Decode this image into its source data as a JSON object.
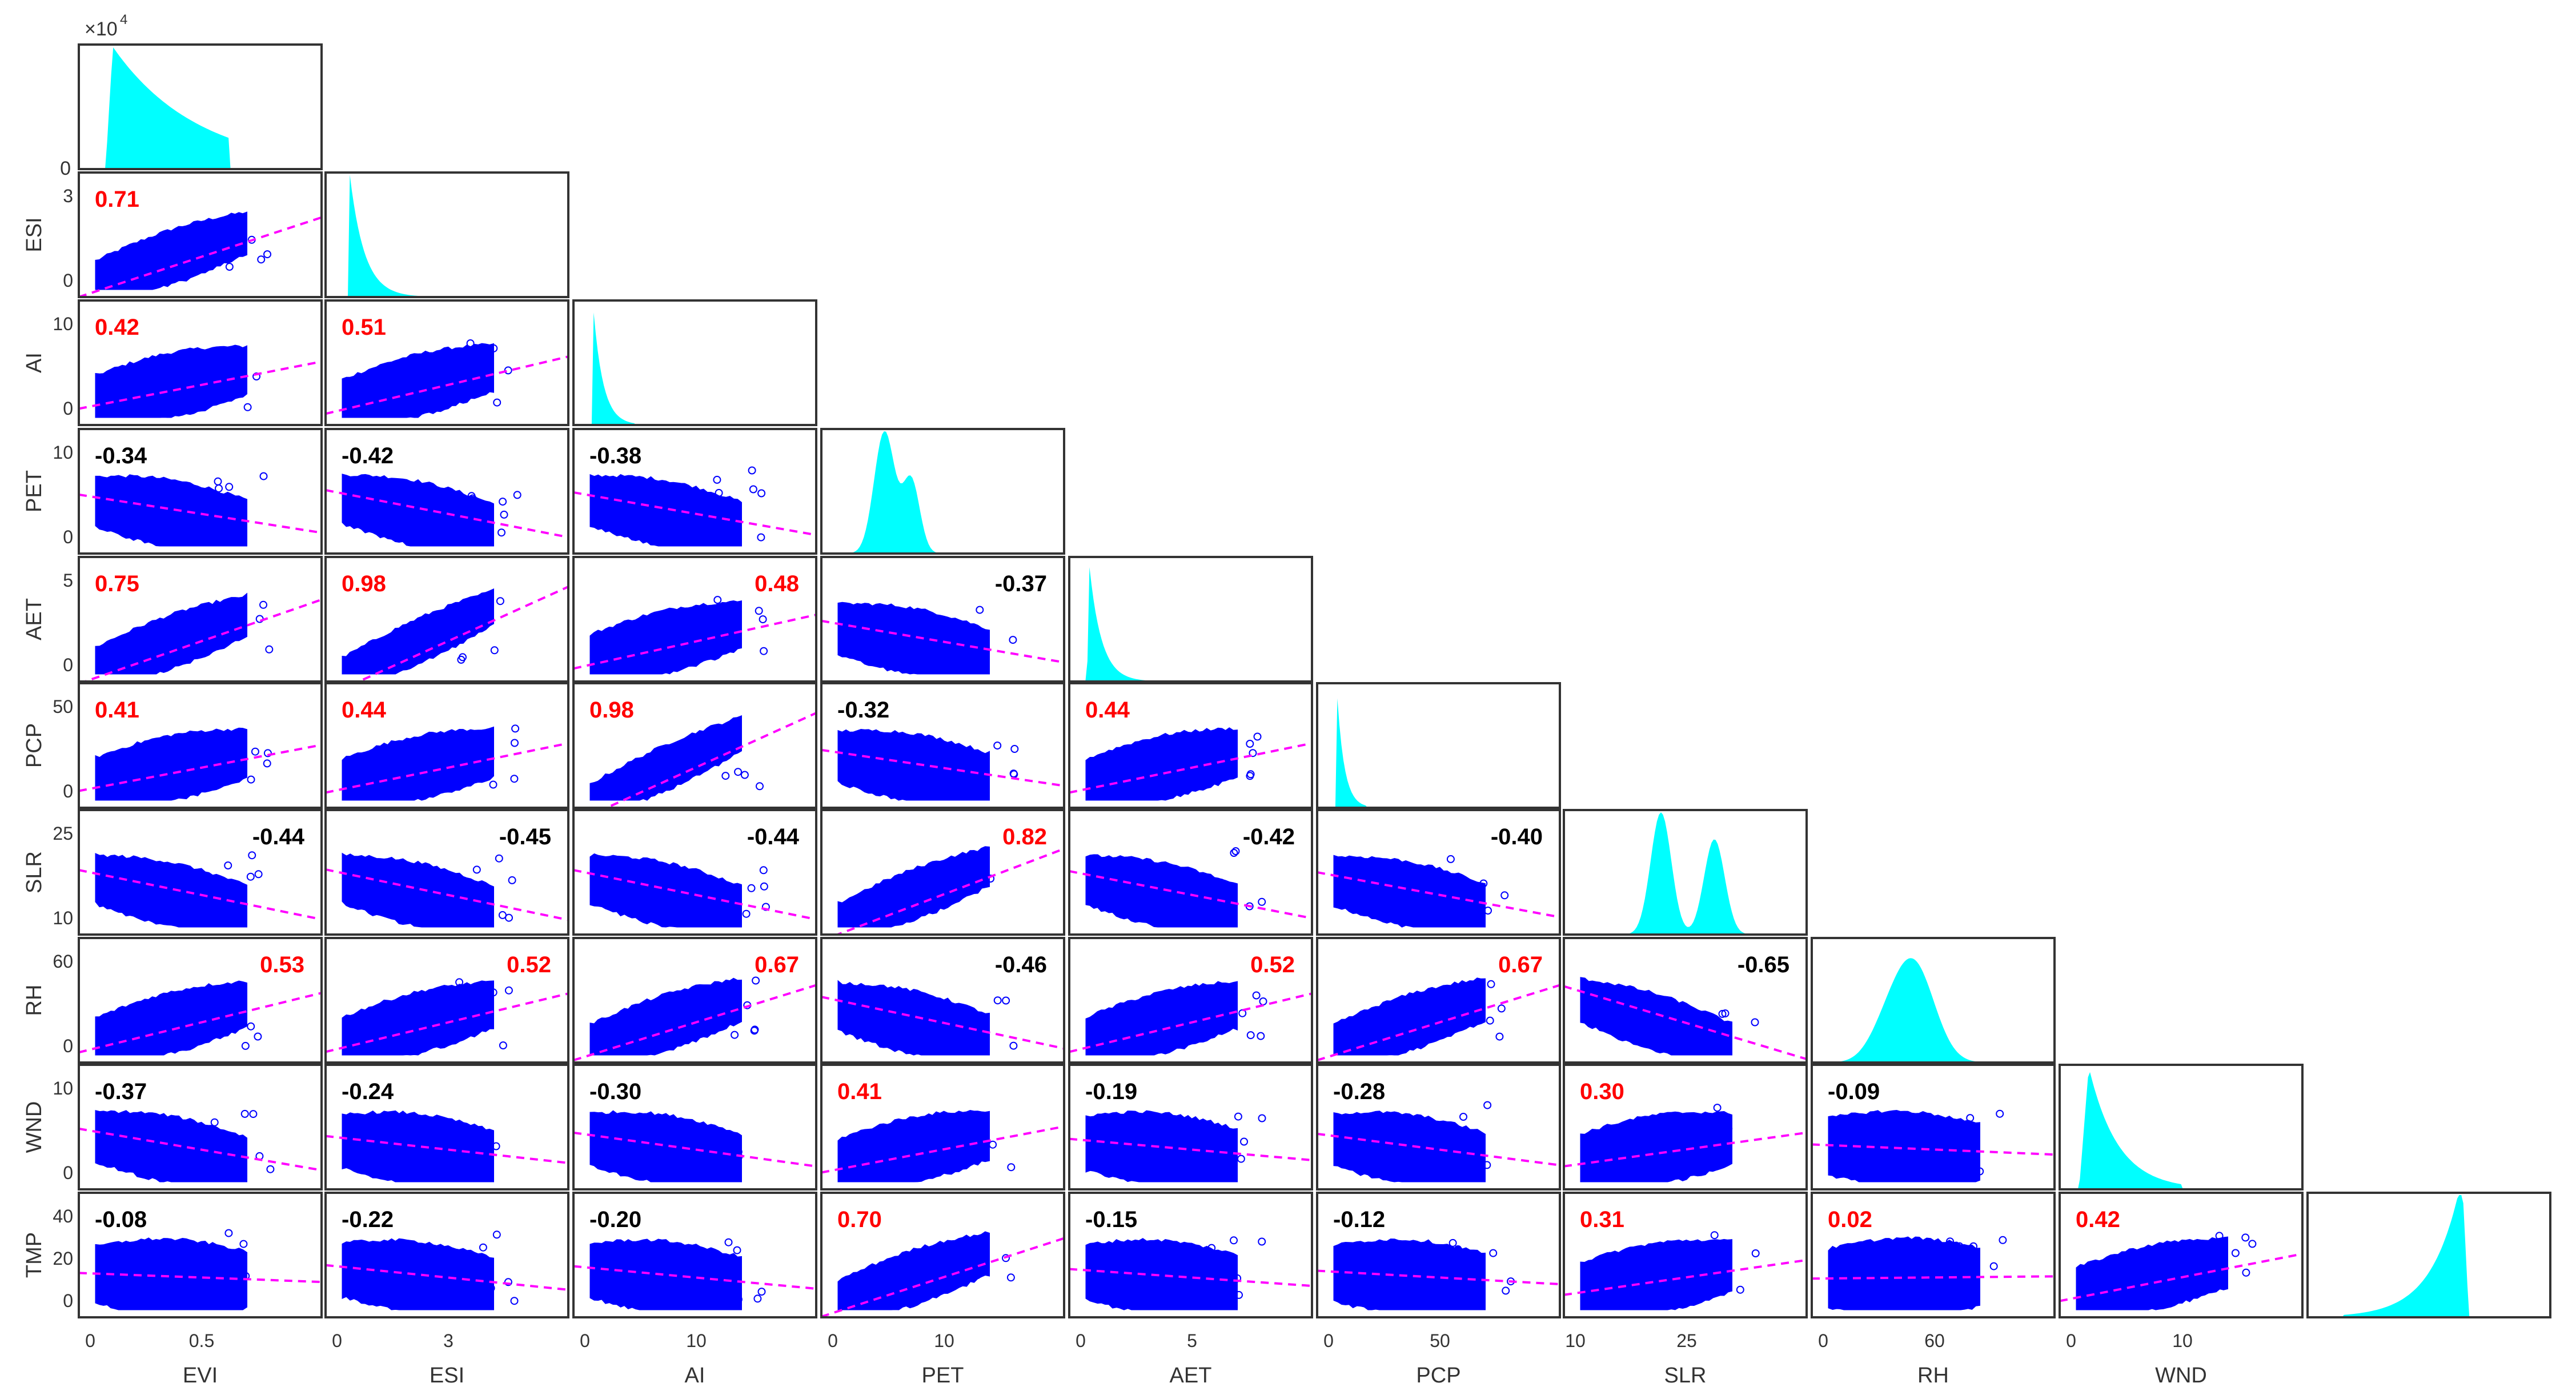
{
  "chart_data": {
    "type": "scatter-matrix",
    "title": "",
    "variables": [
      "EVI",
      "ESI",
      "AI",
      "PET",
      "AET",
      "PCP",
      "SLR",
      "RH",
      "WND",
      "TMP"
    ],
    "diagonal": "histogram",
    "histogram_color": "#00ffff",
    "scatter_color": "#0000ff",
    "fit_line_color": "#ff00ff",
    "positive_corr_color": "#ff0000",
    "negative_corr_color": "#000000",
    "top_hist_ylabel_exponent": "×10^4",
    "top_hist_ytick": "0",
    "x_ticks": {
      "EVI": [
        "0",
        "0.5"
      ],
      "ESI": [
        "0",
        "3"
      ],
      "AI": [
        "0",
        "10"
      ],
      "PET": [
        "0",
        "10"
      ],
      "AET": [
        "0",
        "5"
      ],
      "PCP": [
        "0",
        "50"
      ],
      "SLR": [
        "10",
        "25"
      ],
      "RH": [
        "0",
        "60"
      ],
      "WND": [
        "0",
        "10"
      ],
      "TMP": []
    },
    "y_ticks": {
      "ESI": [
        "3",
        "0"
      ],
      "AI": [
        "10",
        "0"
      ],
      "PET": [
        "10",
        "0"
      ],
      "AET": [
        "5",
        "0"
      ],
      "PCP": [
        "50",
        "0"
      ],
      "SLR": [
        "25",
        "10"
      ],
      "RH": [
        "60",
        "0"
      ],
      "WND": [
        "10",
        "0"
      ],
      "TMP": [
        "40",
        "20",
        "0"
      ]
    },
    "correlations": [
      {
        "row": "ESI",
        "col": "EVI",
        "r": 0.71
      },
      {
        "row": "AI",
        "col": "EVI",
        "r": 0.42
      },
      {
        "row": "AI",
        "col": "ESI",
        "r": 0.51
      },
      {
        "row": "PET",
        "col": "EVI",
        "r": -0.34
      },
      {
        "row": "PET",
        "col": "ESI",
        "r": -0.42
      },
      {
        "row": "PET",
        "col": "AI",
        "r": -0.38
      },
      {
        "row": "AET",
        "col": "EVI",
        "r": 0.75
      },
      {
        "row": "AET",
        "col": "ESI",
        "r": 0.98
      },
      {
        "row": "AET",
        "col": "AI",
        "r": 0.48
      },
      {
        "row": "AET",
        "col": "PET",
        "r": -0.37
      },
      {
        "row": "PCP",
        "col": "EVI",
        "r": 0.41
      },
      {
        "row": "PCP",
        "col": "ESI",
        "r": 0.44
      },
      {
        "row": "PCP",
        "col": "AI",
        "r": 0.98
      },
      {
        "row": "PCP",
        "col": "PET",
        "r": -0.32
      },
      {
        "row": "PCP",
        "col": "AET",
        "r": 0.44
      },
      {
        "row": "SLR",
        "col": "EVI",
        "r": -0.44
      },
      {
        "row": "SLR",
        "col": "ESI",
        "r": -0.45
      },
      {
        "row": "SLR",
        "col": "AI",
        "r": -0.44
      },
      {
        "row": "SLR",
        "col": "PET",
        "r": 0.82
      },
      {
        "row": "SLR",
        "col": "AET",
        "r": -0.42
      },
      {
        "row": "SLR",
        "col": "PCP",
        "r": -0.4
      },
      {
        "row": "RH",
        "col": "EVI",
        "r": 0.53
      },
      {
        "row": "RH",
        "col": "ESI",
        "r": 0.52
      },
      {
        "row": "RH",
        "col": "AI",
        "r": 0.67
      },
      {
        "row": "RH",
        "col": "PET",
        "r": -0.46
      },
      {
        "row": "RH",
        "col": "AET",
        "r": 0.52
      },
      {
        "row": "RH",
        "col": "PCP",
        "r": 0.67
      },
      {
        "row": "RH",
        "col": "SLR",
        "r": -0.65
      },
      {
        "row": "WND",
        "col": "EVI",
        "r": -0.37
      },
      {
        "row": "WND",
        "col": "ESI",
        "r": -0.24
      },
      {
        "row": "WND",
        "col": "AI",
        "r": -0.3
      },
      {
        "row": "WND",
        "col": "PET",
        "r": 0.41
      },
      {
        "row": "WND",
        "col": "AET",
        "r": -0.19
      },
      {
        "row": "WND",
        "col": "PCP",
        "r": -0.28
      },
      {
        "row": "WND",
        "col": "SLR",
        "r": 0.3
      },
      {
        "row": "WND",
        "col": "RH",
        "r": -0.09
      },
      {
        "row": "TMP",
        "col": "EVI",
        "r": -0.08
      },
      {
        "row": "TMP",
        "col": "ESI",
        "r": -0.22
      },
      {
        "row": "TMP",
        "col": "AI",
        "r": -0.2
      },
      {
        "row": "TMP",
        "col": "PET",
        "r": 0.7
      },
      {
        "row": "TMP",
        "col": "AET",
        "r": -0.15
      },
      {
        "row": "TMP",
        "col": "PCP",
        "r": -0.12
      },
      {
        "row": "TMP",
        "col": "SLR",
        "r": 0.31
      },
      {
        "row": "TMP",
        "col": "RH",
        "r": 0.02
      },
      {
        "row": "TMP",
        "col": "WND",
        "r": 0.42
      }
    ],
    "label_positions": {
      "top-left": [
        "ESI-EVI",
        "AI-EVI",
        "AI-ESI",
        "PET-EVI",
        "PET-ESI",
        "PET-AI",
        "AET-EVI",
        "AET-ESI",
        "PCP-EVI",
        "PCP-ESI",
        "PCP-AI",
        "PCP-PET",
        "PCP-AET",
        "WND-EVI",
        "WND-ESI",
        "WND-AI",
        "WND-PET",
        "WND-AET",
        "WND-PCP",
        "WND-SLR",
        "WND-RH",
        "TMP-EVI",
        "TMP-ESI",
        "TMP-AI",
        "TMP-PET",
        "TMP-AET",
        "TMP-PCP",
        "TMP-SLR",
        "TMP-RH",
        "TMP-WND"
      ],
      "top-right": [
        "AET-AI",
        "AET-PET",
        "SLR-EVI",
        "SLR-ESI",
        "SLR-AI",
        "SLR-PET",
        "SLR-AET",
        "SLR-PCP",
        "RH-EVI",
        "RH-ESI",
        "RH-AI",
        "RH-PET",
        "RH-AET",
        "RH-PCP",
        "RH-SLR"
      ]
    },
    "grid": false,
    "legend": null
  }
}
